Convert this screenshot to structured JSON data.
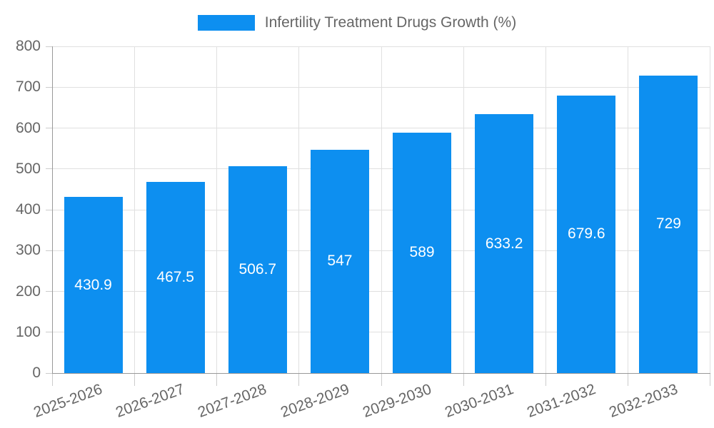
{
  "legend": {
    "label": "Infertility Treatment Drugs Growth (%)"
  },
  "colors": {
    "bar": "#0d8ff0",
    "grid_line": "#e0e0e0",
    "tick": "#cccccc",
    "axis_line": "#999999",
    "label_text": "#666666",
    "value_text": "#ffffff"
  },
  "chart_data": {
    "type": "bar",
    "title": "Infertility Treatment Drugs Growth (%)",
    "series_name": "Infertility Treatment Drugs Growth (%)",
    "categories": [
      "2025-2026",
      "2026-2027",
      "2027-2028",
      "2028-2029",
      "2029-2030",
      "2030-2031",
      "2031-2032",
      "2032-2033"
    ],
    "values": [
      430.9,
      467.5,
      506.7,
      547,
      589,
      633.2,
      679.6,
      729
    ],
    "value_labels": [
      "430.9",
      "467.5",
      "506.7",
      "547",
      "589",
      "633.2",
      "679.6",
      "729"
    ],
    "xlabel": "",
    "ylabel": "",
    "ylim": [
      0,
      800
    ],
    "ytick_step": 100,
    "ytick_labels": [
      "0",
      "100",
      "200",
      "300",
      "400",
      "500",
      "600",
      "700",
      "800"
    ],
    "grid": "both",
    "legend_position": "top",
    "value_label_position": "inside-center",
    "x_label_rotation_deg": -20
  }
}
